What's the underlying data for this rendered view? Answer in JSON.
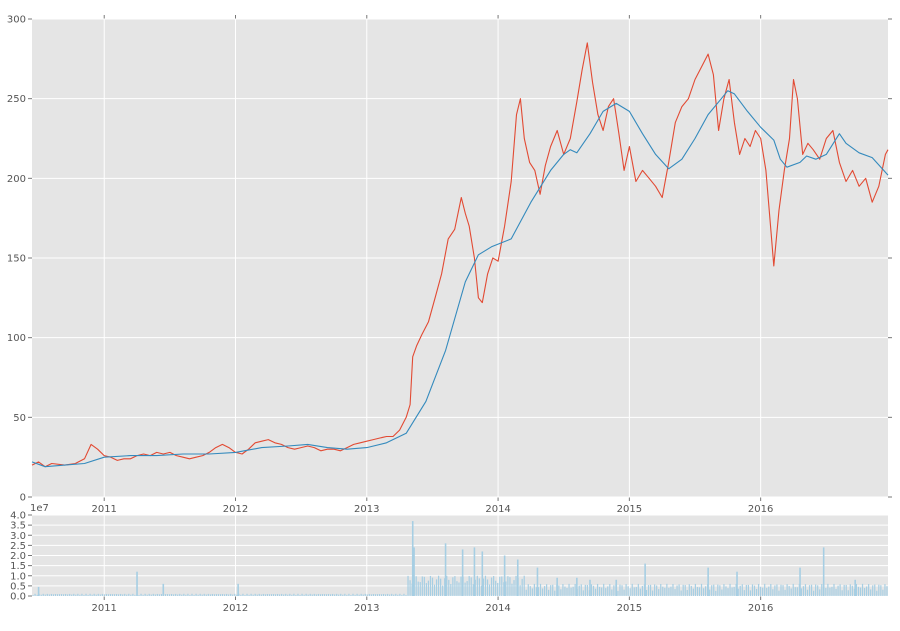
{
  "chart_data": [
    {
      "type": "line",
      "x_ticks": [
        "2011",
        "2012",
        "2013",
        "2014",
        "2015",
        "2016"
      ],
      "y_ticks": [
        "0",
        "50",
        "100",
        "150",
        "200",
        "250",
        "300"
      ],
      "ylim": [
        0,
        300
      ],
      "xlim": [
        2010.45,
        2016.97
      ],
      "grid": true,
      "series": [
        {
          "color": "#E24A33",
          "points": [
            [
              2010.45,
              20
            ],
            [
              2010.5,
              22
            ],
            [
              2010.55,
              19
            ],
            [
              2010.6,
              21
            ],
            [
              2010.7,
              20
            ],
            [
              2010.78,
              21
            ],
            [
              2010.85,
              24
            ],
            [
              2010.9,
              33
            ],
            [
              2010.95,
              30
            ],
            [
              2011.0,
              26
            ],
            [
              2011.05,
              25
            ],
            [
              2011.1,
              23
            ],
            [
              2011.15,
              24
            ],
            [
              2011.2,
              24
            ],
            [
              2011.25,
              26
            ],
            [
              2011.3,
              27
            ],
            [
              2011.35,
              26
            ],
            [
              2011.4,
              28
            ],
            [
              2011.45,
              27
            ],
            [
              2011.5,
              28
            ],
            [
              2011.55,
              26
            ],
            [
              2011.6,
              25
            ],
            [
              2011.65,
              24
            ],
            [
              2011.7,
              25
            ],
            [
              2011.75,
              26
            ],
            [
              2011.8,
              28
            ],
            [
              2011.85,
              31
            ],
            [
              2011.9,
              33
            ],
            [
              2011.95,
              31
            ],
            [
              2012.0,
              28
            ],
            [
              2012.05,
              27
            ],
            [
              2012.1,
              30
            ],
            [
              2012.15,
              34
            ],
            [
              2012.2,
              35
            ],
            [
              2012.25,
              36
            ],
            [
              2012.3,
              34
            ],
            [
              2012.35,
              33
            ],
            [
              2012.4,
              31
            ],
            [
              2012.45,
              30
            ],
            [
              2012.5,
              31
            ],
            [
              2012.55,
              32
            ],
            [
              2012.6,
              31
            ],
            [
              2012.65,
              29
            ],
            [
              2012.7,
              30
            ],
            [
              2012.75,
              30
            ],
            [
              2012.8,
              29
            ],
            [
              2012.85,
              31
            ],
            [
              2012.9,
              33
            ],
            [
              2012.95,
              34
            ],
            [
              2013.0,
              35
            ],
            [
              2013.05,
              36
            ],
            [
              2013.1,
              37
            ],
            [
              2013.15,
              38
            ],
            [
              2013.2,
              38
            ],
            [
              2013.25,
              42
            ],
            [
              2013.3,
              50
            ],
            [
              2013.33,
              58
            ],
            [
              2013.35,
              88
            ],
            [
              2013.38,
              95
            ],
            [
              2013.42,
              102
            ],
            [
              2013.47,
              110
            ],
            [
              2013.52,
              125
            ],
            [
              2013.57,
              140
            ],
            [
              2013.62,
              162
            ],
            [
              2013.67,
              168
            ],
            [
              2013.72,
              188
            ],
            [
              2013.75,
              178
            ],
            [
              2013.78,
              170
            ],
            [
              2013.82,
              150
            ],
            [
              2013.85,
              125
            ],
            [
              2013.88,
              122
            ],
            [
              2013.92,
              140
            ],
            [
              2013.96,
              150
            ],
            [
              2014.0,
              148
            ],
            [
              2014.05,
              170
            ],
            [
              2014.1,
              198
            ],
            [
              2014.14,
              240
            ],
            [
              2014.17,
              250
            ],
            [
              2014.2,
              225
            ],
            [
              2014.24,
              210
            ],
            [
              2014.28,
              205
            ],
            [
              2014.32,
              190
            ],
            [
              2014.36,
              208
            ],
            [
              2014.4,
              220
            ],
            [
              2014.45,
              230
            ],
            [
              2014.5,
              215
            ],
            [
              2014.55,
              225
            ],
            [
              2014.6,
              248
            ],
            [
              2014.64,
              268
            ],
            [
              2014.68,
              285
            ],
            [
              2014.72,
              260
            ],
            [
              2014.76,
              240
            ],
            [
              2014.8,
              230
            ],
            [
              2014.84,
              245
            ],
            [
              2014.88,
              250
            ],
            [
              2014.92,
              228
            ],
            [
              2014.96,
              205
            ],
            [
              2015.0,
              220
            ],
            [
              2015.05,
              198
            ],
            [
              2015.1,
              205
            ],
            [
              2015.15,
              200
            ],
            [
              2015.2,
              195
            ],
            [
              2015.25,
              188
            ],
            [
              2015.3,
              210
            ],
            [
              2015.35,
              235
            ],
            [
              2015.4,
              245
            ],
            [
              2015.45,
              250
            ],
            [
              2015.5,
              262
            ],
            [
              2015.55,
              270
            ],
            [
              2015.6,
              278
            ],
            [
              2015.64,
              265
            ],
            [
              2015.68,
              230
            ],
            [
              2015.72,
              250
            ],
            [
              2015.76,
              262
            ],
            [
              2015.8,
              235
            ],
            [
              2015.84,
              215
            ],
            [
              2015.88,
              225
            ],
            [
              2015.92,
              220
            ],
            [
              2015.96,
              230
            ],
            [
              2016.0,
              225
            ],
            [
              2016.04,
              205
            ],
            [
              2016.08,
              165
            ],
            [
              2016.1,
              145
            ],
            [
              2016.14,
              180
            ],
            [
              2016.18,
              205
            ],
            [
              2016.22,
              225
            ],
            [
              2016.25,
              262
            ],
            [
              2016.28,
              250
            ],
            [
              2016.32,
              215
            ],
            [
              2016.36,
              222
            ],
            [
              2016.4,
              218
            ],
            [
              2016.45,
              212
            ],
            [
              2016.5,
              225
            ],
            [
              2016.55,
              230
            ],
            [
              2016.6,
              210
            ],
            [
              2016.65,
              198
            ],
            [
              2016.7,
              205
            ],
            [
              2016.75,
              195
            ],
            [
              2016.8,
              200
            ],
            [
              2016.85,
              185
            ],
            [
              2016.9,
              195
            ],
            [
              2016.95,
              215
            ],
            [
              2016.97,
              218
            ]
          ]
        },
        {
          "color": "#348ABD",
          "points": [
            [
              2010.45,
              22
            ],
            [
              2010.55,
              19
            ],
            [
              2010.7,
              20
            ],
            [
              2010.85,
              21
            ],
            [
              2011.0,
              25
            ],
            [
              2011.2,
              26
            ],
            [
              2011.4,
              26
            ],
            [
              2011.6,
              27
            ],
            [
              2011.8,
              27
            ],
            [
              2012.0,
              28
            ],
            [
              2012.2,
              31
            ],
            [
              2012.4,
              32
            ],
            [
              2012.55,
              33
            ],
            [
              2012.7,
              31
            ],
            [
              2012.85,
              30
            ],
            [
              2013.0,
              31
            ],
            [
              2013.15,
              34
            ],
            [
              2013.3,
              40
            ],
            [
              2013.45,
              60
            ],
            [
              2013.6,
              92
            ],
            [
              2013.75,
              135
            ],
            [
              2013.85,
              152
            ],
            [
              2013.95,
              157
            ],
            [
              2014.1,
              162
            ],
            [
              2014.25,
              185
            ],
            [
              2014.4,
              205
            ],
            [
              2014.5,
              215
            ],
            [
              2014.55,
              218
            ],
            [
              2014.6,
              216
            ],
            [
              2014.7,
              228
            ],
            [
              2014.8,
              242
            ],
            [
              2014.9,
              247
            ],
            [
              2015.0,
              242
            ],
            [
              2015.1,
              228
            ],
            [
              2015.2,
              215
            ],
            [
              2015.3,
              206
            ],
            [
              2015.4,
              212
            ],
            [
              2015.5,
              225
            ],
            [
              2015.6,
              240
            ],
            [
              2015.7,
              250
            ],
            [
              2015.75,
              255
            ],
            [
              2015.8,
              253
            ],
            [
              2015.9,
              242
            ],
            [
              2016.0,
              232
            ],
            [
              2016.1,
              224
            ],
            [
              2016.15,
              212
            ],
            [
              2016.2,
              207
            ],
            [
              2016.3,
              210
            ],
            [
              2016.35,
              214
            ],
            [
              2016.42,
              212
            ],
            [
              2016.5,
              215
            ],
            [
              2016.6,
              228
            ],
            [
              2016.65,
              222
            ],
            [
              2016.75,
              216
            ],
            [
              2016.85,
              213
            ],
            [
              2016.97,
              202
            ]
          ]
        }
      ]
    },
    {
      "type": "bar",
      "offset_text": "1e7",
      "x_ticks": [
        "2011",
        "2012",
        "2013",
        "2014",
        "2015",
        "2016"
      ],
      "y_ticks": [
        "0.0",
        "0.5",
        "1.0",
        "1.5",
        "2.0",
        "2.5",
        "3.0",
        "3.5",
        "4.0"
      ],
      "ylim": [
        0,
        4
      ],
      "xlim": [
        2010.45,
        2016.97
      ],
      "color": "#A6CEE3",
      "peaks": [
        [
          2010.5,
          0.45
        ],
        [
          2011.25,
          1.2
        ],
        [
          2011.45,
          0.6
        ],
        [
          2012.02,
          0.6
        ],
        [
          2013.35,
          3.7
        ],
        [
          2013.36,
          2.4
        ],
        [
          2013.6,
          2.6
        ],
        [
          2013.73,
          2.3
        ],
        [
          2013.82,
          2.4
        ],
        [
          2013.88,
          2.2
        ],
        [
          2014.05,
          2.0
        ],
        [
          2014.15,
          1.8
        ],
        [
          2014.3,
          1.4
        ],
        [
          2014.45,
          0.9
        ],
        [
          2014.6,
          0.9
        ],
        [
          2014.7,
          0.8
        ],
        [
          2014.9,
          0.8
        ],
        [
          2015.12,
          1.6
        ],
        [
          2015.6,
          1.4
        ],
        [
          2015.82,
          1.2
        ],
        [
          2016.3,
          1.4
        ],
        [
          2016.48,
          2.4
        ],
        [
          2016.72,
          0.8
        ]
      ]
    }
  ]
}
